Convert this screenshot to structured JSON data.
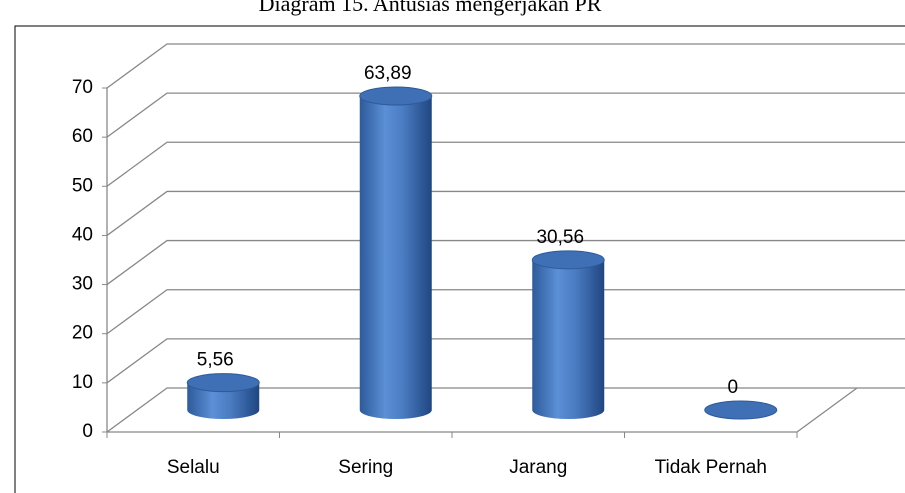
{
  "chart_data": {
    "type": "bar",
    "title": "Diagram 15. Antusias mengerjakan PR",
    "categories": [
      "Selalu",
      "Sering",
      "Jarang",
      "Tidak Pernah"
    ],
    "values": [
      5.56,
      63.89,
      30.56,
      0
    ],
    "value_labels": [
      "5,56",
      "63,89",
      "30,56",
      "0"
    ],
    "color": "#4f81bd",
    "ylim": [
      0,
      70
    ],
    "yticks": [
      0,
      10,
      20,
      30,
      40,
      50,
      60,
      70
    ],
    "grid": true
  }
}
